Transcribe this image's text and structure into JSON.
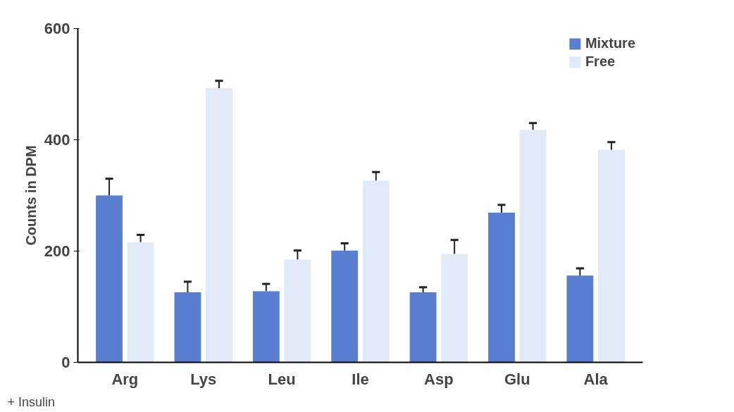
{
  "chart_data": {
    "type": "bar",
    "ylabel": "Counts in DPM",
    "categories": [
      "Arg",
      "Lys",
      "Leu",
      "Ile",
      "Asp",
      "Glu",
      "Ala"
    ],
    "series": [
      {
        "name": "Mixture",
        "color": "#5b7fd0",
        "values": [
          300,
          126,
          128,
          201,
          126,
          269,
          156
        ],
        "errors": [
          [
            300,
            330
          ],
          [
            126,
            145
          ],
          [
            128,
            141
          ],
          [
            201,
            214
          ],
          [
            126,
            135
          ],
          [
            269,
            283
          ],
          [
            156,
            169
          ]
        ]
      },
      {
        "name": "Free",
        "color": "#e2eaf7",
        "values": [
          216,
          493,
          185,
          327,
          195,
          418,
          382
        ],
        "errors": [
          [
            216,
            229
          ],
          [
            493,
            506
          ],
          [
            185,
            201
          ],
          [
            327,
            342
          ],
          [
            195,
            220
          ],
          [
            418,
            430
          ],
          [
            382,
            396
          ]
        ]
      }
    ],
    "ylim": [
      0,
      600
    ],
    "yticks": [
      0,
      200,
      400,
      600
    ],
    "grid": false,
    "legend": "top right",
    "annotations": [
      "+ Insulin"
    ]
  }
}
